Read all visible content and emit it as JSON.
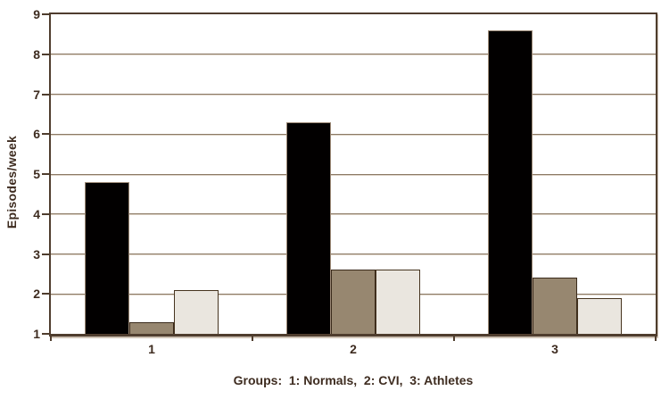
{
  "chart_data": {
    "type": "bar",
    "title": "",
    "ylabel": "Episodes/week",
    "xlabel": "Groups:  1: Normals,  2: CVI,  3: Athletes",
    "categories": [
      "1",
      "2",
      "3"
    ],
    "series": [
      {
        "name": "black",
        "color": "#020000",
        "border_color": "#9d8a77",
        "values": [
          4.8,
          6.3,
          8.6
        ]
      },
      {
        "name": "brown",
        "color": "#978770",
        "border_color": "#3a2a1b",
        "values": [
          1.3,
          2.6,
          2.4
        ]
      },
      {
        "name": "cream",
        "color": "#eae6df",
        "border_color": "#46341f",
        "values": [
          2.1,
          2.6,
          1.9
        ]
      }
    ],
    "ylim": [
      1,
      9
    ],
    "yticks": [
      1,
      2,
      3,
      4,
      5,
      6,
      7,
      8,
      9
    ],
    "grid": true,
    "legend": "none",
    "colors": {
      "text": "#3e2c20",
      "gridline": "#8b7965",
      "frame": "#4f3d2e",
      "background": "#ffffff"
    }
  }
}
